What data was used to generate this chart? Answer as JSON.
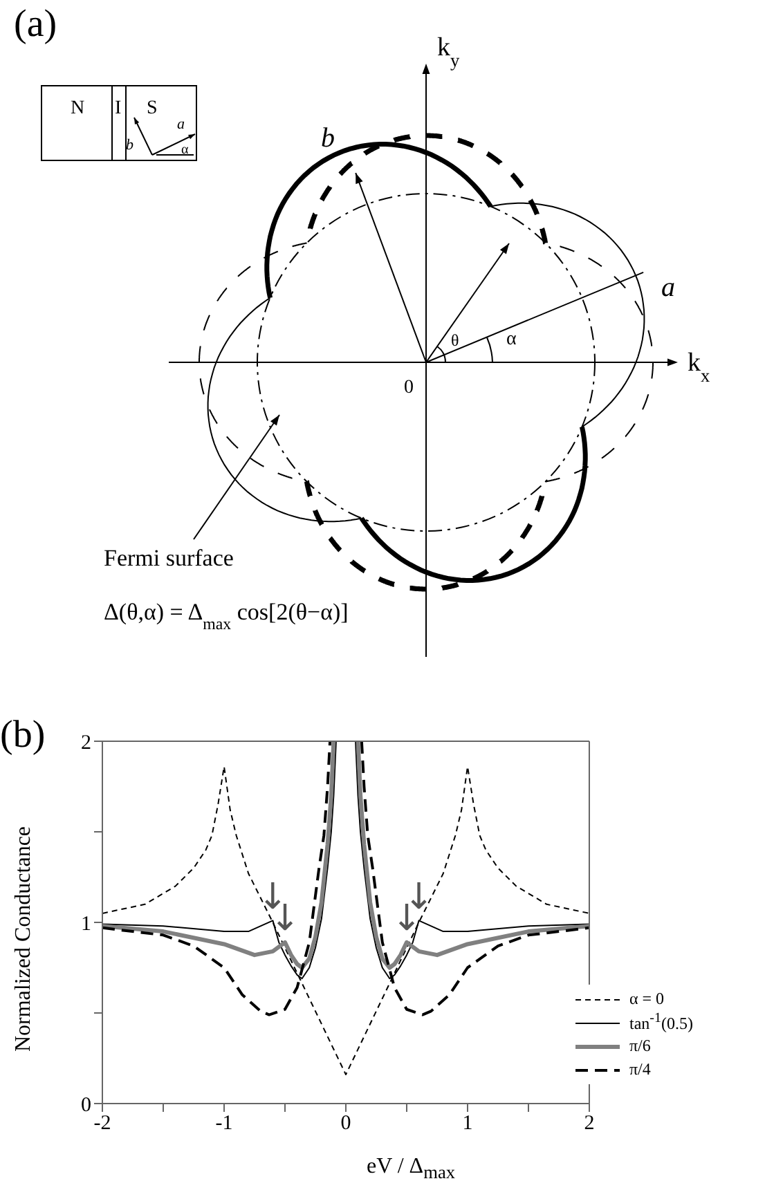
{
  "chart_data": [
    {
      "type": "other",
      "title": "(a)",
      "annotations": [
        "N",
        "I",
        "S",
        "b",
        "a",
        "α",
        "b",
        "a",
        "k$_{y}$",
        "k$_{x}$",
        "θ",
        "α",
        "0",
        "Fermi surface",
        "Δ(θ,α) = Δ$_{max}$ cos[2(θ−α)]"
      ]
    },
    {
      "type": "line",
      "title": "(b)",
      "xlabel": "eV / Δ$_{max}$",
      "ylabel": "Normalized Conductance",
      "xlim": [
        -2,
        2
      ],
      "ylim": [
        0,
        2
      ],
      "xticks": [
        -2,
        {
          "value": -1.5,
          "label": null
        },
        -1,
        {
          "value": -0.5,
          "label": null
        },
        0,
        {
          "value": 0.5,
          "label": null
        },
        1,
        {
          "value": 1.5,
          "label": null
        },
        2
      ],
      "yticks": [
        0,
        {
          "value": 0.5,
          "label": null
        },
        1,
        {
          "value": 1.5,
          "label": null
        },
        2
      ],
      "grid": false,
      "legend": "bottom right",
      "marker": "none",
      "series": [
        {
          "name": "α = 0",
          "color": "#000000",
          "line_style": "dotted",
          "x": [
            -2,
            -1.65,
            -1.4,
            -1.25,
            -1.15,
            -1.1,
            -1.05,
            -1,
            -0.95,
            -0.9,
            -0.8,
            -0.6,
            -0.3,
            0,
            0.3,
            0.6,
            0.8,
            0.9,
            0.95,
            1,
            1.05,
            1.1,
            1.15,
            1.25,
            1.4,
            1.65,
            2
          ],
          "values": [
            1.05,
            1.1,
            1.2,
            1.3,
            1.4,
            1.48,
            1.65,
            1.86,
            1.62,
            1.48,
            1.27,
            1.0,
            0.58,
            0.16,
            0.58,
            1.0,
            1.27,
            1.48,
            1.62,
            1.86,
            1.65,
            1.48,
            1.4,
            1.3,
            1.2,
            1.1,
            1.05
          ]
        },
        {
          "name": "tan$^{-1}$(0.5)",
          "color": "#000000",
          "line_style": "solid",
          "x": [
            -2,
            -1.5,
            -1,
            -0.8,
            -0.6,
            -0.55,
            -0.5,
            -0.45,
            -0.4,
            -0.36,
            -0.3,
            -0.25,
            -0.2,
            -0.15,
            -0.12,
            -0.1,
            -0.08,
            0,
            0.08,
            0.1,
            0.12,
            0.15,
            0.2,
            0.25,
            0.3,
            0.36,
            0.4,
            0.45,
            0.5,
            0.55,
            0.6,
            0.8,
            1,
            1.5,
            2
          ],
          "values": [
            0.99,
            0.98,
            0.95,
            0.95,
            1.01,
            0.89,
            0.82,
            0.76,
            0.71,
            0.69,
            0.75,
            0.86,
            1.02,
            1.3,
            1.5,
            1.7,
            2.0,
            null,
            2.0,
            1.7,
            1.5,
            1.3,
            1.02,
            0.86,
            0.75,
            0.69,
            0.71,
            0.76,
            0.82,
            0.89,
            1.01,
            0.95,
            0.95,
            0.98,
            0.99
          ]
        },
        {
          "name": "π/6",
          "color": "#808080",
          "line_style": "solid",
          "x": [
            -2,
            -1.5,
            -1,
            -0.75,
            -0.6,
            -0.5,
            -0.45,
            -0.4,
            -0.36,
            -0.3,
            -0.25,
            -0.2,
            -0.15,
            -0.12,
            -0.1,
            0,
            0.1,
            0.12,
            0.15,
            0.2,
            0.25,
            0.3,
            0.36,
            0.4,
            0.45,
            0.5,
            0.6,
            0.75,
            1,
            1.5,
            2
          ],
          "values": [
            0.98,
            0.95,
            0.88,
            0.82,
            0.84,
            0.89,
            0.82,
            0.77,
            0.75,
            0.8,
            0.92,
            1.11,
            1.43,
            1.7,
            2.0,
            null,
            2.0,
            1.7,
            1.43,
            1.11,
            0.92,
            0.8,
            0.75,
            0.77,
            0.82,
            0.89,
            0.84,
            0.82,
            0.88,
            0.95,
            0.98
          ]
        },
        {
          "name": "π/4",
          "color": "#000000",
          "line_style": "dashed",
          "x": [
            -2,
            -1.5,
            -1.25,
            -1,
            -0.85,
            -0.7,
            -0.63,
            -0.5,
            -0.4,
            -0.3,
            -0.22,
            -0.18,
            -0.15,
            -0.13,
            0,
            0.13,
            0.15,
            0.18,
            0.22,
            0.3,
            0.4,
            0.5,
            0.63,
            0.7,
            0.85,
            1,
            1.25,
            1.5,
            2
          ],
          "values": [
            0.97,
            0.93,
            0.87,
            0.75,
            0.6,
            0.51,
            0.49,
            0.52,
            0.64,
            0.89,
            1.3,
            1.48,
            1.75,
            2.0,
            null,
            2.0,
            1.75,
            1.48,
            1.3,
            0.89,
            0.64,
            0.52,
            0.49,
            0.51,
            0.6,
            0.75,
            0.87,
            0.93,
            0.97
          ]
        }
      ],
      "annotations": [
        {
          "text": "↓",
          "x": -0.6,
          "y": 1.01
        },
        {
          "text": "↓",
          "x": -0.5,
          "y": 0.89
        },
        {
          "text": "↓",
          "x": 0.5,
          "y": 0.89
        },
        {
          "text": "↓",
          "x": 0.6,
          "y": 1.01
        }
      ]
    }
  ]
}
